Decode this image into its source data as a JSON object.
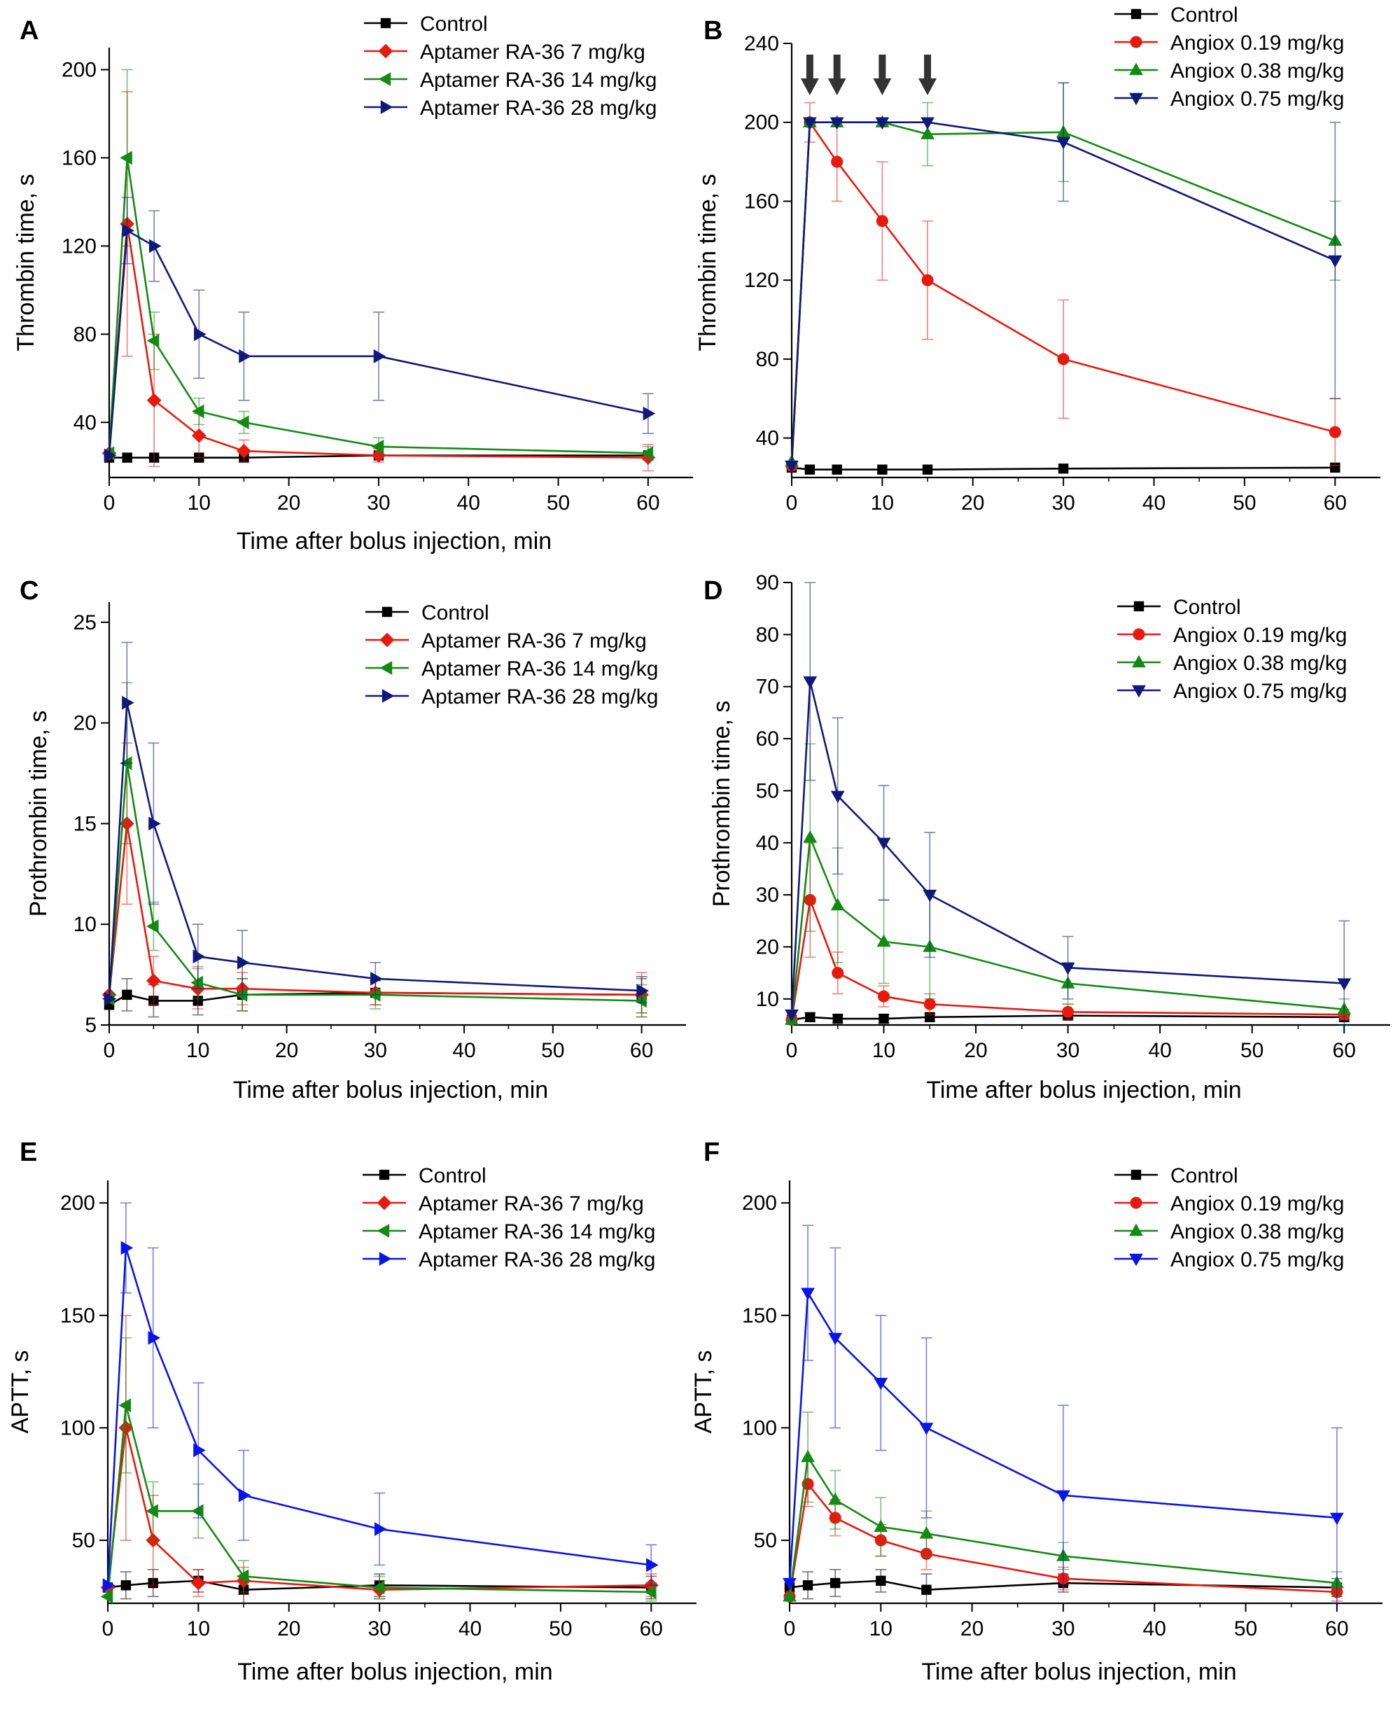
{
  "colors": {
    "control": "#000000",
    "red": "#e8190f",
    "green": "#138a13",
    "navy": "#10197a",
    "blue": "#0a14e6",
    "arrow": "#333333"
  },
  "chart_data": [
    {
      "panel": "A",
      "type": "line",
      "xlabel": "Time after bolus injection, min",
      "ylabel": "Thrombin time, s",
      "xlim": [
        0,
        65
      ],
      "ylim": [
        15,
        210
      ],
      "xticks": [
        0,
        10,
        20,
        30,
        40,
        50,
        60
      ],
      "yticks": [
        40,
        80,
        120,
        160,
        200
      ],
      "legend_position": "top-right",
      "series": [
        {
          "name": "Control",
          "color": "control",
          "marker": "square",
          "x": [
            0,
            2,
            5,
            10,
            15,
            30,
            60
          ],
          "y": [
            24,
            24,
            24,
            24,
            24,
            25,
            25
          ],
          "err": [
            0,
            0,
            0,
            0,
            0,
            0,
            0
          ]
        },
        {
          "name": "Aptamer RA-36 7 mg/kg",
          "color": "red",
          "marker": "diamond",
          "x": [
            0,
            2,
            5,
            10,
            15,
            30,
            60
          ],
          "y": [
            26,
            130,
            50,
            34,
            27,
            25,
            24
          ],
          "err": [
            0,
            60,
            30,
            10,
            5,
            3,
            6
          ]
        },
        {
          "name": "Aptamer RA-36 14 mg/kg",
          "color": "green",
          "marker": "triangle-left",
          "x": [
            0,
            2,
            5,
            10,
            15,
            30,
            60
          ],
          "y": [
            26,
            160,
            77,
            45,
            40,
            29,
            26
          ],
          "err": [
            0,
            40,
            13,
            6,
            5,
            4,
            3
          ]
        },
        {
          "name": "Aptamer RA-36 28 mg/kg",
          "color": "navy",
          "marker": "triangle-right",
          "x": [
            0,
            2,
            5,
            10,
            15,
            30,
            60
          ],
          "y": [
            25,
            127,
            120,
            80,
            70,
            70,
            44
          ],
          "err": [
            0,
            15,
            16,
            20,
            20,
            20,
            9
          ]
        }
      ]
    },
    {
      "panel": "B",
      "type": "line",
      "xlabel": "",
      "ylabel": "Thrombin time, s",
      "xlim": [
        0,
        65
      ],
      "ylim": [
        20,
        240
      ],
      "xticks": [
        0,
        10,
        20,
        30,
        40,
        50,
        60
      ],
      "yticks": [
        40,
        80,
        120,
        160,
        200,
        240
      ],
      "legend_position": "top-right",
      "arrows_at_x": [
        2,
        5,
        10,
        15
      ],
      "series": [
        {
          "name": "Control",
          "color": "control",
          "marker": "square",
          "x": [
            0,
            2,
            5,
            10,
            15,
            30,
            60
          ],
          "y": [
            25,
            24,
            24,
            24,
            24,
            24.5,
            25
          ],
          "err": [
            0,
            0,
            0,
            0,
            0,
            0,
            0
          ]
        },
        {
          "name": "Angiox 0.19 mg/kg",
          "color": "red",
          "marker": "circle",
          "x": [
            0,
            2,
            5,
            10,
            15,
            30,
            60
          ],
          "y": [
            26,
            200,
            180,
            150,
            120,
            80,
            43
          ],
          "err": [
            0,
            10,
            20,
            30,
            30,
            30,
            17
          ]
        },
        {
          "name": "Angiox 0.38 mg/kg",
          "color": "green",
          "marker": "triangle-up",
          "x": [
            0,
            2,
            5,
            10,
            15,
            30,
            60
          ],
          "y": [
            28,
            200,
            200,
            200,
            194,
            195,
            140
          ],
          "err": [
            0,
            0,
            0,
            0,
            16,
            25,
            20
          ]
        },
        {
          "name": "Angiox 0.75 mg/kg",
          "color": "navy",
          "marker": "triangle-down",
          "x": [
            0,
            2,
            5,
            10,
            15,
            30,
            60
          ],
          "y": [
            26,
            200,
            200,
            200,
            200,
            190,
            130
          ],
          "err": [
            0,
            0,
            0,
            0,
            0,
            30,
            70
          ]
        }
      ]
    },
    {
      "panel": "C",
      "type": "line",
      "xlabel": "Time after bolus injection, min",
      "ylabel": "Prothrombin time, s",
      "xlim": [
        0,
        65
      ],
      "ylim": [
        5,
        26
      ],
      "xticks": [
        0,
        10,
        20,
        30,
        40,
        50,
        60
      ],
      "yticks": [
        5,
        10,
        15,
        20,
        25
      ],
      "legend_position": "top-right",
      "series": [
        {
          "name": "Control",
          "color": "control",
          "marker": "square",
          "x": [
            0,
            2,
            5,
            10,
            15,
            30,
            60
          ],
          "y": [
            6.0,
            6.5,
            6.2,
            6.2,
            6.5,
            6.6,
            6.5
          ],
          "err": [
            0,
            0.8,
            0.8,
            0.7,
            0.8,
            0.6,
            0.9
          ]
        },
        {
          "name": "Aptamer RA-36 7 mg/kg",
          "color": "red",
          "marker": "diamond",
          "x": [
            0,
            2,
            5,
            10,
            15,
            30,
            60
          ],
          "y": [
            6.5,
            15,
            7.2,
            6.8,
            6.8,
            6.6,
            6.5
          ],
          "err": [
            0,
            4,
            1.2,
            1,
            0.8,
            0.6,
            1.1
          ]
        },
        {
          "name": "Aptamer RA-36 14 mg/kg",
          "color": "green",
          "marker": "triangle-left",
          "x": [
            0,
            2,
            5,
            10,
            15,
            30,
            60
          ],
          "y": [
            6.3,
            18,
            9.9,
            7.1,
            6.5,
            6.5,
            6.2
          ],
          "err": [
            0,
            4,
            1.2,
            0.8,
            0.8,
            0.7,
            0.8
          ]
        },
        {
          "name": "Aptamer RA-36 28 mg/kg",
          "color": "navy",
          "marker": "triangle-right",
          "x": [
            0,
            2,
            5,
            10,
            15,
            30,
            60
          ],
          "y": [
            6.3,
            21,
            15,
            8.4,
            8.1,
            7.3,
            6.7
          ],
          "err": [
            0,
            3,
            4,
            1.6,
            1.6,
            0.8,
            0.6
          ]
        }
      ]
    },
    {
      "panel": "D",
      "type": "line",
      "xlabel": "Time after bolus injection, min",
      "ylabel": "Prothrombin time, s",
      "xlim": [
        0,
        65
      ],
      "ylim": [
        5,
        90
      ],
      "xticks": [
        0,
        10,
        20,
        30,
        40,
        50,
        60
      ],
      "yticks": [
        10,
        20,
        30,
        40,
        50,
        60,
        70,
        80,
        90
      ],
      "legend_position": "top-right",
      "series": [
        {
          "name": "Control",
          "color": "control",
          "marker": "square",
          "x": [
            0,
            2,
            5,
            10,
            15,
            30,
            60
          ],
          "y": [
            6,
            6.5,
            6.2,
            6.2,
            6.5,
            6.8,
            6.5
          ],
          "err": [
            0,
            0.8,
            0.8,
            0.8,
            0.8,
            0.6,
            0.8
          ]
        },
        {
          "name": "Angiox 0.19 mg/kg",
          "color": "red",
          "marker": "circle",
          "x": [
            0,
            2,
            5,
            10,
            15,
            30,
            60
          ],
          "y": [
            6,
            29,
            15,
            10.5,
            9,
            7.5,
            7
          ],
          "err": [
            0,
            11,
            4,
            2,
            2,
            1.5,
            1
          ]
        },
        {
          "name": "Angiox 0.38 mg/kg",
          "color": "green",
          "marker": "triangle-up",
          "x": [
            0,
            2,
            5,
            10,
            15,
            30,
            60
          ],
          "y": [
            6,
            41,
            28,
            21,
            20,
            13,
            8
          ],
          "err": [
            0,
            18,
            11,
            8,
            10,
            4,
            2
          ]
        },
        {
          "name": "Angiox 0.75 mg/kg",
          "color": "navy",
          "marker": "triangle-down",
          "x": [
            0,
            2,
            5,
            10,
            15,
            30,
            60
          ],
          "y": [
            7,
            71,
            49,
            40,
            30,
            16,
            13
          ],
          "err": [
            0,
            19,
            15,
            11,
            12,
            6,
            12
          ]
        }
      ]
    },
    {
      "panel": "E",
      "type": "line",
      "xlabel": "Time after bolus injection, min",
      "ylabel": "APTT, s",
      "xlim": [
        0,
        65
      ],
      "ylim": [
        22,
        210
      ],
      "xticks": [
        0,
        10,
        20,
        30,
        40,
        50,
        60
      ],
      "yticks": [
        50,
        100,
        150,
        200
      ],
      "legend_position": "top-right",
      "series": [
        {
          "name": "Control",
          "color": "control",
          "marker": "square",
          "x": [
            0,
            2,
            5,
            10,
            15,
            30,
            60
          ],
          "y": [
            29,
            30,
            31,
            32,
            28,
            30,
            29
          ],
          "err": [
            0,
            6,
            6,
            5,
            6,
            5,
            5
          ]
        },
        {
          "name": "Aptamer RA-36 7 mg/kg",
          "color": "red",
          "marker": "diamond",
          "x": [
            0,
            2,
            5,
            10,
            15,
            30,
            60
          ],
          "y": [
            29,
            100,
            50,
            31,
            32,
            28,
            30
          ],
          "err": [
            0,
            50,
            20,
            6,
            6,
            4,
            5
          ]
        },
        {
          "name": "Aptamer RA-36 14 mg/kg",
          "color": "green",
          "marker": "triangle-left",
          "x": [
            0,
            2,
            5,
            10,
            15,
            30,
            60
          ],
          "y": [
            25,
            110,
            63,
            63,
            34,
            29,
            27
          ],
          "err": [
            0,
            30,
            13,
            12,
            7,
            5,
            4
          ]
        },
        {
          "name": "Aptamer RA-36 28 mg/kg",
          "color": "blue",
          "marker": "triangle-right",
          "x": [
            0,
            2,
            5,
            10,
            15,
            30,
            60
          ],
          "y": [
            30,
            180,
            140,
            90,
            70,
            55,
            39
          ],
          "err": [
            0,
            20,
            40,
            30,
            20,
            16,
            9
          ]
        }
      ]
    },
    {
      "panel": "F",
      "type": "line",
      "xlabel": "Time after bolus injection, min",
      "ylabel": "APTT, s",
      "xlim": [
        0,
        65
      ],
      "ylim": [
        22,
        210
      ],
      "xticks": [
        0,
        10,
        20,
        30,
        40,
        50,
        60
      ],
      "yticks": [
        50,
        100,
        150,
        200
      ],
      "legend_position": "top-right",
      "series": [
        {
          "name": "Control",
          "color": "control",
          "marker": "square",
          "x": [
            0,
            2,
            5,
            10,
            15,
            30,
            60
          ],
          "y": [
            29,
            30,
            31,
            32,
            28,
            31,
            29
          ],
          "err": [
            0,
            6,
            6,
            5,
            7,
            4,
            4
          ]
        },
        {
          "name": "Angiox 0.19 mg/kg",
          "color": "red",
          "marker": "circle",
          "x": [
            0,
            2,
            5,
            10,
            15,
            30,
            60
          ],
          "y": [
            25,
            75,
            60,
            50,
            44,
            33,
            27
          ],
          "err": [
            0,
            10,
            8,
            7,
            7,
            5,
            4
          ]
        },
        {
          "name": "Angiox 0.38 mg/kg",
          "color": "green",
          "marker": "triangle-up",
          "x": [
            0,
            2,
            5,
            10,
            15,
            30,
            60
          ],
          "y": [
            25,
            87,
            68,
            56,
            53,
            43,
            31
          ],
          "err": [
            0,
            20,
            13,
            13,
            10,
            6,
            5
          ]
        },
        {
          "name": "Angiox 0.75 mg/kg",
          "color": "blue",
          "marker": "triangle-down",
          "x": [
            0,
            2,
            5,
            10,
            15,
            30,
            60
          ],
          "y": [
            31,
            160,
            140,
            120,
            100,
            70,
            60
          ],
          "err": [
            0,
            30,
            40,
            30,
            40,
            40,
            40
          ]
        }
      ]
    }
  ]
}
